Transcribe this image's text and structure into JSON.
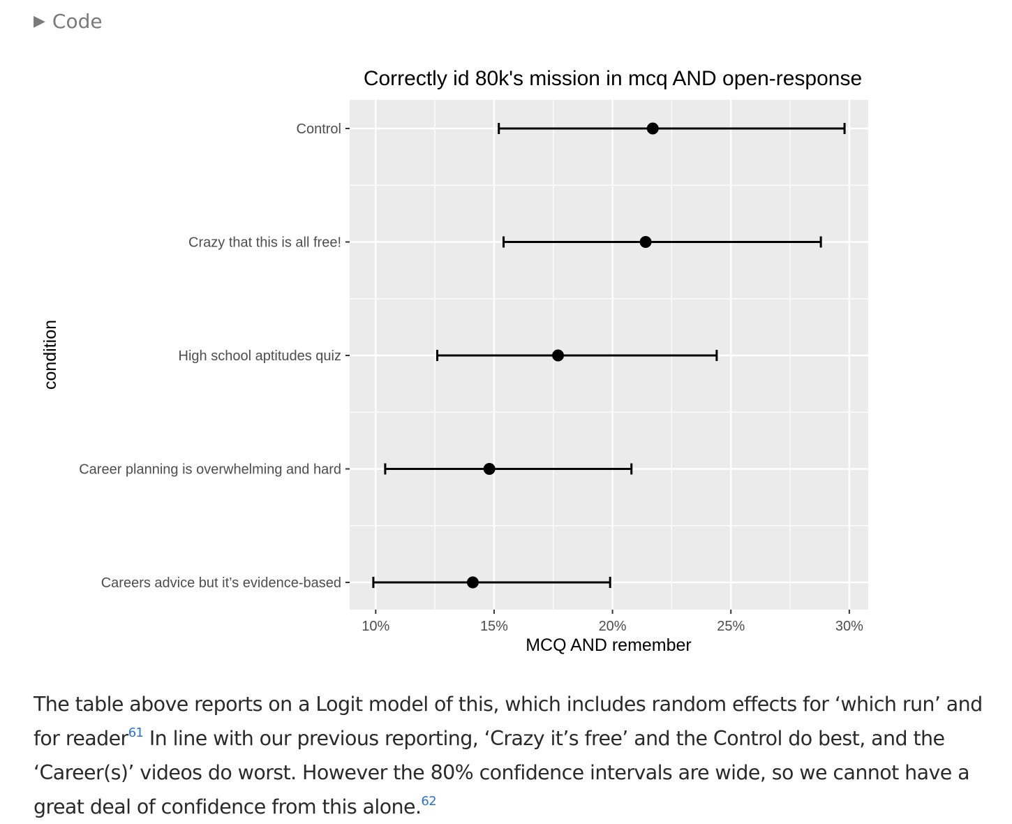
{
  "code_toggle": {
    "label": "Code",
    "icon": "triangle-right-icon"
  },
  "chart_data": {
    "type": "scatter",
    "subtype": "dot-with-error-bars",
    "title": "Correctly id 80k's mission in mcq AND open-response",
    "xlabel": "MCQ AND remember",
    "ylabel": "condition",
    "xlim": [
      0.089,
      0.308
    ],
    "x_ticks": [
      0.1,
      0.15,
      0.2,
      0.25,
      0.3
    ],
    "x_tick_labels": [
      "10%",
      "15%",
      "20%",
      "25%",
      "30%"
    ],
    "categories": [
      "Control",
      "Crazy that this is all free!",
      "High school aptitudes quiz",
      "Career planning is overwhelming and hard",
      "Careers advice but it’s evidence-based"
    ],
    "points": [
      {
        "category": "Control",
        "estimate": 0.217,
        "lower": 0.152,
        "upper": 0.298
      },
      {
        "category": "Crazy that this is all free!",
        "estimate": 0.214,
        "lower": 0.154,
        "upper": 0.288
      },
      {
        "category": "High school aptitudes quiz",
        "estimate": 0.177,
        "lower": 0.126,
        "upper": 0.244
      },
      {
        "category": "Career planning is overwhelming and hard",
        "estimate": 0.148,
        "lower": 0.104,
        "upper": 0.208
      },
      {
        "category": "Careers advice but it’s evidence-based",
        "estimate": 0.141,
        "lower": 0.099,
        "upper": 0.199
      }
    ],
    "grid": true,
    "legend": "none",
    "colors": {
      "panel": "#ebebeb",
      "grid": "#ffffff",
      "marks": "#000000"
    }
  },
  "paragraph": {
    "part1": "The table above reports on a Logit model of this, which includes random effects for ‘which run’ and for reader",
    "fn1": "61",
    "part2": " In line with our previous reporting, ‘Crazy it’s free’ and the Control do best, and the ‘Career(s)’ videos do worst. However the 80% confidence intervals are wide, so we cannot have a great deal of confidence from this alone.",
    "fn2": "62"
  }
}
